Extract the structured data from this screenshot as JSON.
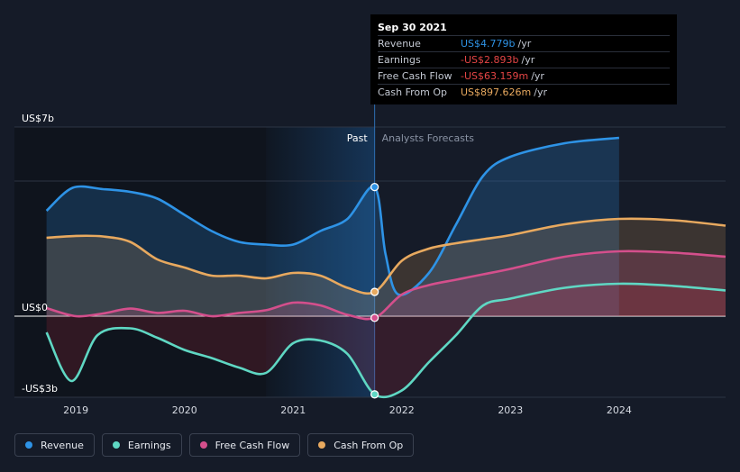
{
  "colors": {
    "background": "#151b28",
    "revenue": "#2e93e6",
    "earnings": "#5fd7c3",
    "free_cash_flow": "#d44f8c",
    "cash_from_op": "#e8a95f"
  },
  "tooltip": {
    "date": "Sep 30 2021",
    "rows": [
      {
        "label": "Revenue",
        "value": "US$4.779b",
        "unit": "/yr",
        "color": "#2e93e6"
      },
      {
        "label": "Earnings",
        "value": "-US$2.893b",
        "unit": "/yr",
        "color": "#e54545"
      },
      {
        "label": "Free Cash Flow",
        "value": "-US$63.159m",
        "unit": "/yr",
        "color": "#e54545"
      },
      {
        "label": "Cash From Op",
        "value": "US$897.626m",
        "unit": "/yr",
        "color": "#e8a95f"
      }
    ]
  },
  "legend": [
    {
      "label": "Revenue",
      "color": "#2e93e6"
    },
    {
      "label": "Earnings",
      "color": "#5fd7c3"
    },
    {
      "label": "Free Cash Flow",
      "color": "#d44f8c"
    },
    {
      "label": "Cash From Op",
      "color": "#e8a95f"
    }
  ],
  "chart_data": {
    "type": "area",
    "y_unit": "US$ billions",
    "ylim": [
      -3,
      7
    ],
    "y_tick_labels": [
      {
        "value": 7,
        "label": "US$7b"
      },
      {
        "value": 0,
        "label": "US$0"
      },
      {
        "value": -3,
        "label": "-US$3b"
      }
    ],
    "xlim": [
      2018.7,
      2024.98
    ],
    "x_ticks": [
      2019,
      2020,
      2021,
      2022,
      2023,
      2024
    ],
    "past_label": "Past",
    "forecast_label": "Analysts Forecasts",
    "divider_x": 2021.75,
    "highlight_x": [
      2020.75,
      2021.75
    ],
    "series": [
      {
        "name": "Revenue",
        "key": "revenue",
        "points": [
          [
            2018.73,
            3.9
          ],
          [
            2018.97,
            4.75
          ],
          [
            2019.25,
            4.7
          ],
          [
            2019.5,
            4.6
          ],
          [
            2019.75,
            4.35
          ],
          [
            2020.0,
            3.75
          ],
          [
            2020.25,
            3.15
          ],
          [
            2020.5,
            2.75
          ],
          [
            2020.75,
            2.65
          ],
          [
            2021.0,
            2.65
          ],
          [
            2021.25,
            3.15
          ],
          [
            2021.5,
            3.6
          ],
          [
            2021.75,
            4.779
          ],
          [
            2021.85,
            2.3
          ],
          [
            2021.97,
            0.8
          ],
          [
            2022.25,
            1.6
          ],
          [
            2022.5,
            3.4
          ],
          [
            2022.75,
            5.2
          ],
          [
            2023.0,
            5.9
          ],
          [
            2023.5,
            6.4
          ],
          [
            2024.0,
            6.6
          ]
        ]
      },
      {
        "name": "Earnings",
        "key": "earnings",
        "points": [
          [
            2018.73,
            -0.6
          ],
          [
            2018.96,
            -2.4
          ],
          [
            2019.2,
            -0.7
          ],
          [
            2019.5,
            -0.45
          ],
          [
            2019.75,
            -0.8
          ],
          [
            2020.0,
            -1.25
          ],
          [
            2020.25,
            -1.55
          ],
          [
            2020.5,
            -1.9
          ],
          [
            2020.75,
            -2.1
          ],
          [
            2021.0,
            -1.0
          ],
          [
            2021.25,
            -0.9
          ],
          [
            2021.5,
            -1.4
          ],
          [
            2021.75,
            -2.893
          ],
          [
            2022.0,
            -2.75
          ],
          [
            2022.25,
            -1.7
          ],
          [
            2022.5,
            -0.7
          ],
          [
            2022.75,
            0.4
          ],
          [
            2023.0,
            0.65
          ],
          [
            2023.5,
            1.05
          ],
          [
            2024.0,
            1.2
          ],
          [
            2024.5,
            1.12
          ],
          [
            2024.98,
            0.95
          ]
        ]
      },
      {
        "name": "Free Cash Flow",
        "key": "free_cash_flow",
        "points": [
          [
            2018.73,
            0.3
          ],
          [
            2019.0,
            0.0
          ],
          [
            2019.25,
            0.1
          ],
          [
            2019.5,
            0.28
          ],
          [
            2019.75,
            0.12
          ],
          [
            2020.0,
            0.2
          ],
          [
            2020.25,
            0.0
          ],
          [
            2020.5,
            0.12
          ],
          [
            2020.75,
            0.22
          ],
          [
            2021.0,
            0.5
          ],
          [
            2021.25,
            0.4
          ],
          [
            2021.5,
            0.05
          ],
          [
            2021.75,
            -0.063
          ],
          [
            2022.0,
            0.8
          ],
          [
            2022.25,
            1.15
          ],
          [
            2022.5,
            1.35
          ],
          [
            2022.75,
            1.55
          ],
          [
            2023.0,
            1.75
          ],
          [
            2023.5,
            2.2
          ],
          [
            2024.0,
            2.4
          ],
          [
            2024.5,
            2.35
          ],
          [
            2024.98,
            2.2
          ]
        ]
      },
      {
        "name": "Cash From Op",
        "key": "cash_from_op",
        "points": [
          [
            2018.73,
            2.9
          ],
          [
            2019.0,
            2.97
          ],
          [
            2019.25,
            2.95
          ],
          [
            2019.5,
            2.75
          ],
          [
            2019.75,
            2.1
          ],
          [
            2020.0,
            1.8
          ],
          [
            2020.25,
            1.5
          ],
          [
            2020.5,
            1.5
          ],
          [
            2020.75,
            1.4
          ],
          [
            2021.0,
            1.6
          ],
          [
            2021.25,
            1.5
          ],
          [
            2021.5,
            1.05
          ],
          [
            2021.75,
            0.898
          ],
          [
            2022.0,
            2.05
          ],
          [
            2022.25,
            2.5
          ],
          [
            2022.5,
            2.7
          ],
          [
            2022.75,
            2.85
          ],
          [
            2023.0,
            3.0
          ],
          [
            2023.5,
            3.4
          ],
          [
            2024.0,
            3.6
          ],
          [
            2024.5,
            3.55
          ],
          [
            2024.98,
            3.35
          ]
        ]
      }
    ]
  }
}
